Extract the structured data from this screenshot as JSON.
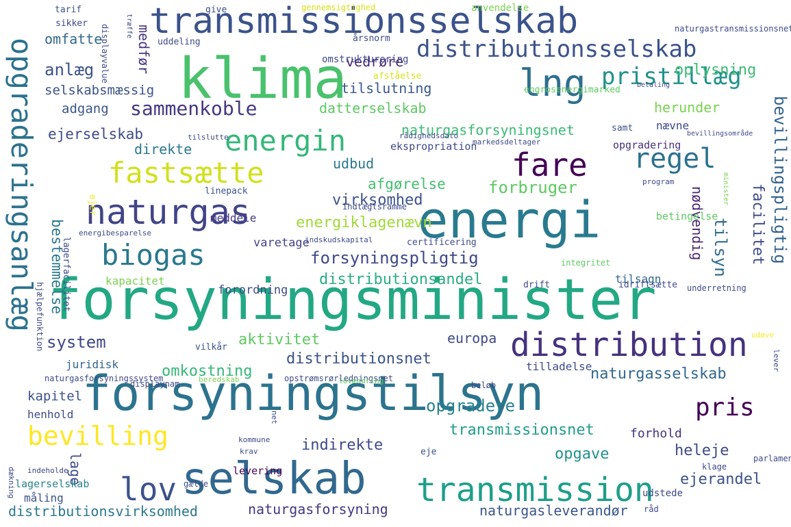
{
  "words": [
    {
      "text": "forsyningsminister",
      "color": "#23a884"
    },
    {
      "text": "forsyningstilsyn",
      "color": "#2c738e"
    },
    {
      "text": "energi",
      "color": "#297a8e"
    },
    {
      "text": "klima",
      "color": "#4ac16d"
    },
    {
      "text": "transmissionsselskab",
      "color": "#3b528b"
    },
    {
      "text": "selskab",
      "color": "#31688e"
    },
    {
      "text": "opgraderingsanlæg",
      "color": "#2c728e"
    },
    {
      "text": "naturgas",
      "color": "#414487"
    },
    {
      "text": "distribution",
      "color": "#46327e"
    },
    {
      "text": "transmission",
      "color": "#1f9e89"
    },
    {
      "text": "lng",
      "color": "#2e6f8e"
    },
    {
      "text": "distributionsselskab",
      "color": "#3b528b"
    },
    {
      "text": "energin",
      "color": "#35b779"
    },
    {
      "text": "fastsætte",
      "color": "#d0e11c"
    },
    {
      "text": "bevilling",
      "color": "#fde725"
    },
    {
      "text": "biogas",
      "color": "#2a788e"
    },
    {
      "text": "fare",
      "color": "#440154"
    },
    {
      "text": "lov",
      "color": "#3b528b"
    },
    {
      "text": "regel",
      "color": "#2c728e"
    },
    {
      "text": "pristillæg",
      "color": "#21918c"
    },
    {
      "text": "sammenkoble",
      "color": "#453781"
    },
    {
      "text": "forsyningspligtig",
      "color": "#3e4989"
    },
    {
      "text": "pris",
      "color": "#440154"
    },
    {
      "text": "system",
      "color": "#3f4788"
    },
    {
      "text": "virksomhed",
      "color": "#3b528b"
    },
    {
      "text": "forbruger",
      "color": "#5ec962"
    },
    {
      "text": "naturgasforsyningsnet",
      "color": "#3bbb75"
    },
    {
      "text": "distributionsnet",
      "color": "#3b528b"
    },
    {
      "text": "omkostning",
      "color": "#35b779"
    },
    {
      "text": "naturgasselskab",
      "color": "#31688e"
    },
    {
      "text": "opgradere",
      "color": "#26828e"
    },
    {
      "text": "transmissionsnet",
      "color": "#1f9e89"
    },
    {
      "text": "naturgasforsyning",
      "color": "#453781"
    },
    {
      "text": "naturgasleverandør",
      "color": "#39568c"
    },
    {
      "text": "distributionsvirksomhed",
      "color": "#2a788e"
    },
    {
      "text": "bevillingspligtig",
      "color": "#33638d"
    },
    {
      "text": "facilitet",
      "color": "#3e4a89"
    },
    {
      "text": "tilsyn",
      "color": "#2f6c8e"
    },
    {
      "text": "nødvendig",
      "color": "#482475"
    },
    {
      "text": "oplysning",
      "color": "#3dbc74"
    },
    {
      "text": "anlæg",
      "color": "#3b528b"
    },
    {
      "text": "selskabsmæssig",
      "color": "#3b528b"
    },
    {
      "text": "tilslutning",
      "color": "#39568c"
    },
    {
      "text": "herunder",
      "color": "#7ad151"
    },
    {
      "text": "datterselskab",
      "color": "#5ec962"
    },
    {
      "text": "adgang",
      "color": "#39568c"
    },
    {
      "text": "ejerselskab",
      "color": "#3e4a89"
    },
    {
      "text": "direkte",
      "color": "#2a788e"
    },
    {
      "text": "udbud",
      "color": "#2a788e"
    },
    {
      "text": "afgørelse",
      "color": "#44bf70"
    },
    {
      "text": "energiklagenævn",
      "color": "#a0da39"
    },
    {
      "text": "distributionsandel",
      "color": "#29af7f"
    },
    {
      "text": "bestemmelse",
      "color": "#2a788e"
    },
    {
      "text": "aktivitet",
      "color": "#5ec962"
    },
    {
      "text": "europa",
      "color": "#3e4a89"
    },
    {
      "text": "kapitel",
      "color": "#3b528b"
    },
    {
      "text": "indirekte",
      "color": "#3e4989"
    },
    {
      "text": "heleje",
      "color": "#3e4a89"
    },
    {
      "text": "opgave",
      "color": "#21918c"
    },
    {
      "text": "lage",
      "color": "#3e4989"
    },
    {
      "text": "ejerandel",
      "color": "#3b528b"
    },
    {
      "text": "omfatte",
      "color": "#31688e"
    },
    {
      "text": "medfør",
      "color": "#46327e"
    },
    {
      "text": "vedrøre",
      "color": "#482878"
    },
    {
      "text": "nævne",
      "color": "#3e4989"
    },
    {
      "text": "forordning",
      "color": "#3e4a89"
    },
    {
      "text": "tilsagn",
      "color": "#31688e"
    },
    {
      "text": "varetage",
      "color": "#414487"
    },
    {
      "text": "meddele",
      "color": "#443a83"
    },
    {
      "text": "henhold",
      "color": "#3e4a89"
    },
    {
      "text": "juridisk",
      "color": "#33638d"
    },
    {
      "text": "kapacitet",
      "color": "#7ad151"
    },
    {
      "text": "opgradering",
      "color": "#46327e"
    },
    {
      "text": "betingelse",
      "color": "#5ec962"
    },
    {
      "text": "forhold",
      "color": "#46327e"
    },
    {
      "text": "tilladelse",
      "color": "#3e4989"
    },
    {
      "text": "lagerselskab",
      "color": "#26828e"
    },
    {
      "text": "levering",
      "color": "#440154"
    },
    {
      "text": "måling",
      "color": "#3b528b"
    },
    {
      "text": "udstede",
      "color": "#3e4989"
    },
    {
      "text": "ekspropriation",
      "color": "#3e4989"
    },
    {
      "text": "omstrukturering",
      "color": "#3e4a89"
    },
    {
      "text": "afståelse",
      "color": "#d8e219"
    },
    {
      "text": "engrosenergimarked",
      "color": "#5ec962"
    },
    {
      "text": "samt",
      "color": "#3b528b"
    },
    {
      "text": "vilkår",
      "color": "#3b528b"
    },
    {
      "text": "eje",
      "color": "#3b528b"
    },
    {
      "text": "ejer",
      "color": "#fde725"
    },
    {
      "text": "linepack",
      "color": "#3b528b"
    },
    {
      "text": "indtægtsramme",
      "color": "#3e4a89"
    },
    {
      "text": "indskudskapital",
      "color": "#3e4a89"
    },
    {
      "text": "certificering",
      "color": "#3e4a89"
    },
    {
      "text": "integritet",
      "color": "#5ec962"
    },
    {
      "text": "drift",
      "color": "#3e4a89"
    },
    {
      "text": "idriftsætte",
      "color": "#3e4a89"
    },
    {
      "text": "underretning",
      "color": "#3e4a89"
    },
    {
      "text": "anvendelse",
      "color": "#7ad151"
    },
    {
      "text": "tarif",
      "color": "#3b528b"
    },
    {
      "text": "sikker",
      "color": "#3e4a89"
    },
    {
      "text": "give",
      "color": "#3e4a89"
    },
    {
      "text": "årsnorm",
      "color": "#3e4a89"
    },
    {
      "text": "uddeling",
      "color": "#3e4a89"
    },
    {
      "text": "naturgastransmissionsnet",
      "color": "#3e4a89"
    },
    {
      "text": "gennemsigtighed",
      "color": "#d8e219"
    },
    {
      "text": "displayvalue",
      "color": "#3e4a89"
    },
    {
      "text": "træffe",
      "color": "#3e4a89"
    },
    {
      "text": "lagerfacilitet",
      "color": "#3e4a89"
    },
    {
      "text": "hjælpefunktion",
      "color": "#3e4a89"
    },
    {
      "text": "energibesparelse",
      "color": "#3e4a89"
    },
    {
      "text": "naturgasforsyningssystem",
      "color": "#3e4a89"
    },
    {
      "text": "displaynam",
      "color": "#3e4a89"
    },
    {
      "text": "opstrømsrørledningsnet",
      "color": "#3e4a89"
    },
    {
      "text": "beredskab",
      "color": "#7ad151"
    },
    {
      "text": "lovændring",
      "color": "#5ec962"
    },
    {
      "text": "beløb",
      "color": "#3e4a89"
    },
    {
      "text": "net",
      "color": "#3e4a89"
    },
    {
      "text": "kommune",
      "color": "#3e4a89"
    },
    {
      "text": "krav",
      "color": "#3e4a89"
    },
    {
      "text": "indeholde",
      "color": "#3e4a89"
    },
    {
      "text": "dækning",
      "color": "#3e4a89"
    },
    {
      "text": "parlament",
      "color": "#3e4a89"
    },
    {
      "text": "klage",
      "color": "#3e4a89"
    },
    {
      "text": "råd",
      "color": "#3e4a89"
    },
    {
      "text": "udøve",
      "color": "#fde725"
    },
    {
      "text": "lever",
      "color": "#3e4a89"
    },
    {
      "text": "rådighedsdato",
      "color": "#3e4a89"
    },
    {
      "text": "markedsdeltager",
      "color": "#3e4a89"
    },
    {
      "text": "program",
      "color": "#3e4a89"
    },
    {
      "text": "minister",
      "color": "#7ad151"
    },
    {
      "text": "tilslutte",
      "color": "#3e4a89"
    },
    {
      "text": "bevillingsområde",
      "color": "#3e4a89"
    },
    {
      "text": "betaling",
      "color": "#3e4a89"
    },
    {
      "text": "gælde",
      "color": "#3e4a89"
    },
    {
      "text": "it",
      "color": "#fde725"
    }
  ]
}
